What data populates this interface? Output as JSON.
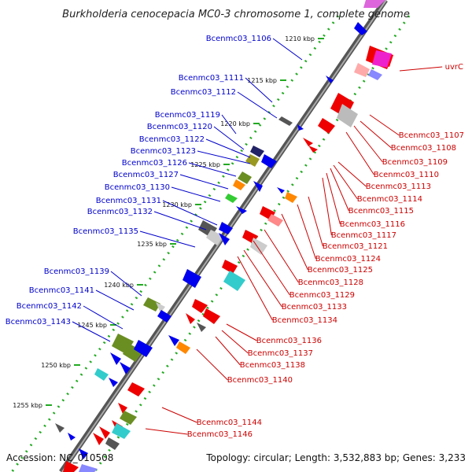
{
  "title": "Burkholderia cenocepacia MC0-3 chromosome 1, complete genome",
  "footer": {
    "accession": "Accession: NC_010508",
    "topology": "Topology: circular; Length: 3,532,883 bp; Genes: 3,233"
  },
  "kbp_ticks": [
    "1210 kbp",
    "1215 kbp",
    "1220 kbp",
    "1225 kbp",
    "1230 kbp",
    "1235 kbp",
    "1240 kbp",
    "1245 kbp",
    "1250 kbp",
    "1255 kbp"
  ],
  "colors": {
    "left_label": "#0000cc",
    "right_label": "#cc0000",
    "backbone": "#777777",
    "gc_track": "#22aa22"
  },
  "left_labels": [
    "Bcenmc03_1106",
    "Bcenmc03_1111",
    "Bcenmc03_1112",
    "Bcenmc03_1119",
    "Bcenmc03_1120",
    "Bcenmc03_1122",
    "Bcenmc03_1123",
    "Bcenmc03_1126",
    "Bcenmc03_1127",
    "Bcenmc03_1130",
    "Bcenmc03_1131",
    "Bcenmc03_1132",
    "Bcenmc03_1135",
    "Bcenmc03_1139",
    "Bcenmc03_1141",
    "Bcenmc03_1142",
    "Bcenmc03_1143"
  ],
  "right_labels": [
    "uvrC",
    "Bcenmc03_1107",
    "Bcenmc03_1108",
    "Bcenmc03_1109",
    "Bcenmc03_1110",
    "Bcenmc03_1113",
    "Bcenmc03_1114",
    "Bcenmc03_1115",
    "Bcenmc03_1116",
    "Bcenmc03_1117",
    "Bcenmc03_1121",
    "Bcenmc03_1124",
    "Bcenmc03_1125",
    "Bcenmc03_1128",
    "Bcenmc03_1129",
    "Bcenmc03_1133",
    "Bcenmc03_1134",
    "Bcenmc03_1136",
    "Bcenmc03_1137",
    "Bcenmc03_1138",
    "Bcenmc03_1140",
    "Bcenmc03_1144",
    "Bcenmc03_1146"
  ]
}
